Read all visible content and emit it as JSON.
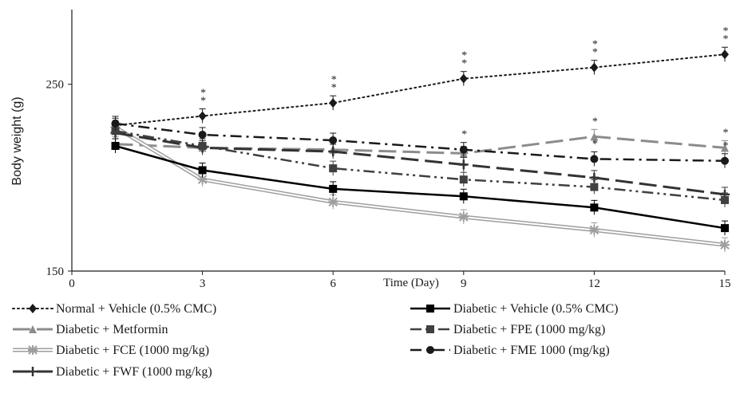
{
  "chart_data": {
    "type": "line",
    "xlabel": "Time (Day)",
    "ylabel": "Body weight (g)",
    "x_ticks": [
      "0",
      "3",
      "6",
      "9",
      "12",
      "15"
    ],
    "y_ticks": [
      "150",
      "250"
    ],
    "xlim": [
      0,
      15
    ],
    "ylim": [
      150,
      290
    ],
    "x": [
      1,
      3,
      6,
      9,
      12,
      15
    ],
    "grid": false,
    "legend_position": "bottom",
    "significance_mark": "*",
    "series": [
      {
        "name": "Normal + Vehicle (0.5% CMC)",
        "values": [
          228,
          233,
          240,
          253,
          259,
          266
        ],
        "color": "#1a1a1a",
        "style": "dotted",
        "marker": "diamond",
        "stars": [
          false,
          true,
          true,
          true,
          true,
          true
        ]
      },
      {
        "name": "Diabetic + Metformin",
        "values": [
          218,
          216,
          215,
          213,
          222,
          216
        ],
        "color": "#8c8c8c",
        "style": "longdash",
        "marker": "triangle",
        "stars": [
          false,
          false,
          false,
          false,
          true,
          true
        ]
      },
      {
        "name": "Diabetic + FCE (1000 mg/kg)",
        "values": [
          227,
          199,
          187,
          179,
          172,
          164
        ],
        "color": "#9e9e9e",
        "style": "double",
        "marker": "star",
        "stars": [
          false,
          false,
          false,
          false,
          false,
          false
        ]
      },
      {
        "name": "Diabetic + FWF (1000 mg/kg)",
        "values": [
          224,
          216,
          214,
          207,
          200,
          191
        ],
        "color": "#333333",
        "style": "longdash",
        "marker": "cross",
        "stars": [
          false,
          false,
          false,
          false,
          false,
          false
        ]
      },
      {
        "name": "Diabetic + Vehicle (0.5% CMC)",
        "values": [
          217,
          204,
          194,
          190,
          184,
          173
        ],
        "color": "#000000",
        "style": "solid",
        "marker": "square",
        "stars": [
          false,
          false,
          false,
          false,
          false,
          false
        ]
      },
      {
        "name": "Diabetic + FPE (1000 mg/kg)",
        "values": [
          225,
          217,
          205,
          199,
          195,
          188
        ],
        "color": "#404040",
        "style": "dashdotdot",
        "marker": "square",
        "stars": [
          false,
          false,
          false,
          false,
          false,
          false
        ]
      },
      {
        "name": "Diabetic + FME 1000 (mg/kg)",
        "values": [
          229,
          223,
          220,
          215,
          210,
          209
        ],
        "color": "#1a1a1a",
        "style": "dashdot",
        "marker": "circle",
        "stars": [
          false,
          false,
          false,
          true,
          true,
          true
        ]
      }
    ]
  }
}
